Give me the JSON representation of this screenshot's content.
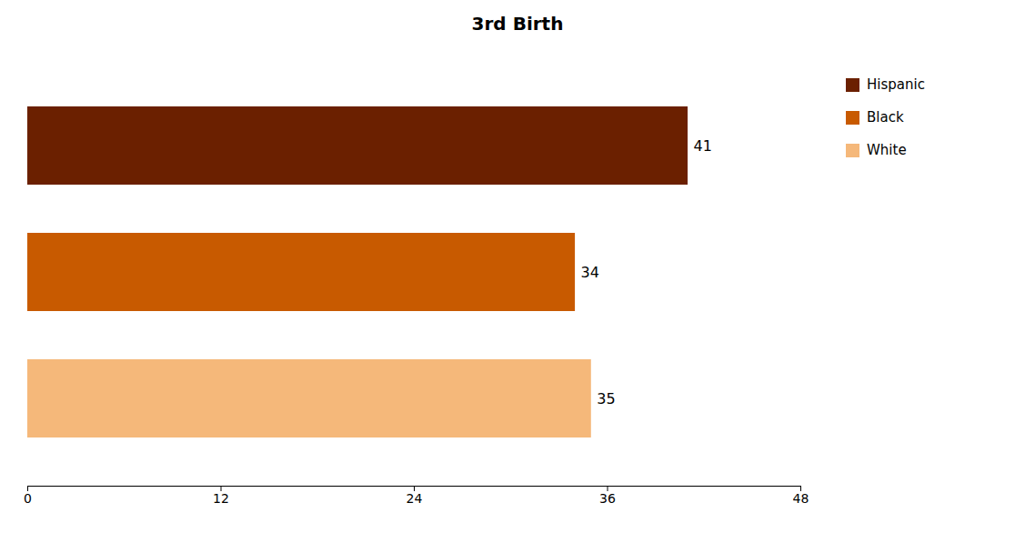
{
  "chart_data": {
    "type": "bar",
    "orientation": "horizontal",
    "title": "3rd Birth",
    "categories": [
      "Hispanic",
      "Black",
      "White"
    ],
    "values": [
      41,
      34,
      35
    ],
    "colors": [
      "#6B2000",
      "#C85A00",
      "#F5B87A"
    ],
    "xlim": [
      0,
      48
    ],
    "xticks": [
      0,
      12,
      24,
      36,
      48
    ],
    "data_labels": true,
    "tick_labels": "x",
    "grid": false,
    "legend": "right"
  }
}
